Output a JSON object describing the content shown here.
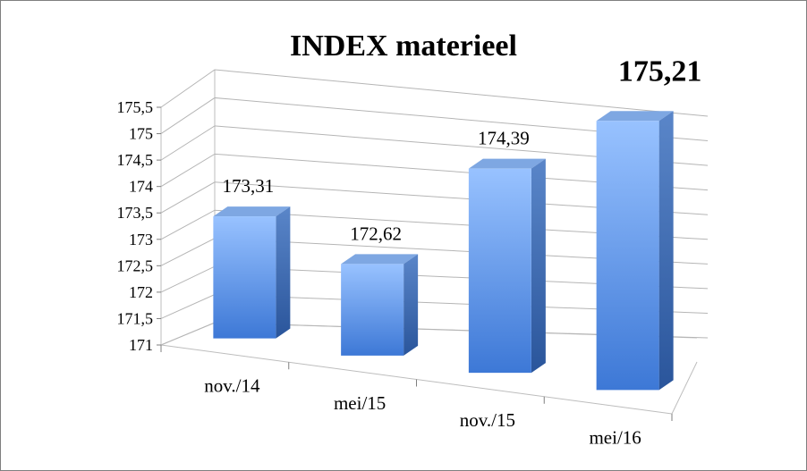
{
  "chart_data": {
    "type": "bar",
    "title": "INDEX materieel",
    "categories": [
      "nov./14",
      "mei/15",
      "nov./15",
      "mei/16"
    ],
    "values": [
      173.31,
      172.62,
      174.39,
      175.21
    ],
    "data_labels": [
      "173,31",
      "172,62",
      "174,39",
      "175,21"
    ],
    "y_ticks": [
      "171",
      "171,5",
      "172",
      "172,5",
      "173",
      "173,5",
      "174",
      "174,5",
      "175",
      "175,5"
    ],
    "ylim": [
      171,
      175.5
    ],
    "grid": true,
    "legend": "none",
    "style": "3d-column",
    "bar_color": "#5b8fd8",
    "emphasized_label_index": 3
  }
}
